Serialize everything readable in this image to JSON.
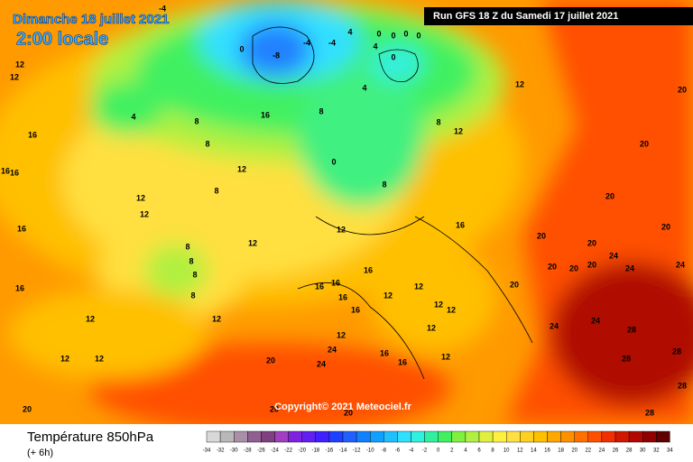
{
  "header": {
    "date": "Dimanche 18 juillet 2021",
    "time": "2:00 locale",
    "run": "Run GFS 18 Z du Samedi 17 juillet 2021"
  },
  "copyright": "Copyright© 2021 Meteociel.fr",
  "footer": {
    "variable": "Température 850hPa",
    "lead": "(+ 6h)"
  },
  "legend": {
    "ticks": [
      -34,
      -32,
      -30,
      -28,
      -26,
      -24,
      -22,
      -20,
      -18,
      -16,
      -14,
      -12,
      -10,
      -8,
      -6,
      -4,
      -2,
      0,
      2,
      4,
      6,
      8,
      10,
      12,
      14,
      16,
      18,
      20,
      22,
      24,
      26,
      28,
      30,
      32,
      34
    ],
    "colors": [
      "#d8d8d8",
      "#b8b8b8",
      "#a890a8",
      "#906090",
      "#804080",
      "#a040c0",
      "#8020e0",
      "#6020f0",
      "#4020ff",
      "#2040ff",
      "#2060ff",
      "#1080ff",
      "#10a0ff",
      "#20c0ff",
      "#30e0ff",
      "#30f0e0",
      "#30f0a0",
      "#40f060",
      "#80f040",
      "#b0f040",
      "#e0f040",
      "#fff040",
      "#ffe040",
      "#ffd020",
      "#ffc000",
      "#ffa800",
      "#ff9000",
      "#ff7000",
      "#ff5000",
      "#f03000",
      "#d01800",
      "#b00800",
      "#900000",
      "#600000"
    ]
  },
  "map": {
    "contour_labels": [
      -4,
      0,
      -8,
      -4,
      -4,
      4,
      0,
      0,
      0,
      0,
      4,
      0,
      4,
      12,
      12,
      12,
      4,
      16,
      8,
      8,
      12,
      16,
      8,
      0,
      8,
      8,
      12,
      20,
      20,
      20,
      20,
      20,
      20,
      24,
      24,
      24,
      20,
      20,
      20,
      20,
      24,
      24,
      28,
      28,
      28,
      28,
      28,
      16,
      16,
      12,
      12,
      8,
      12,
      8,
      8,
      8,
      8,
      12,
      12,
      12,
      20,
      20,
      24,
      24,
      12,
      16,
      16,
      16,
      16,
      16,
      12,
      12,
      12,
      12,
      16,
      16,
      12,
      12,
      12,
      16,
      16,
      16,
      20,
      20,
      12
    ]
  }
}
